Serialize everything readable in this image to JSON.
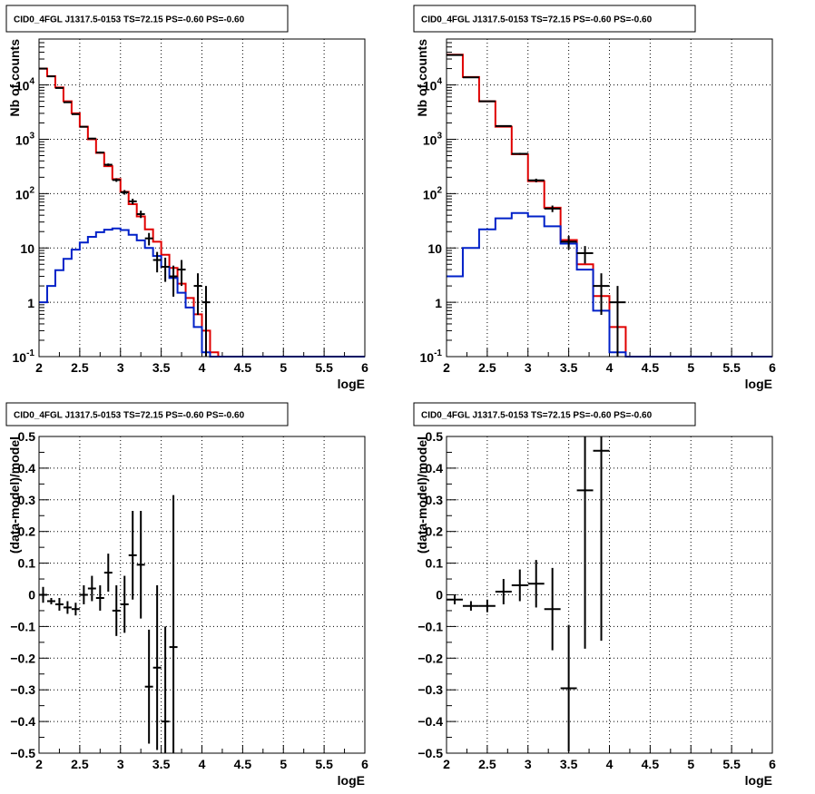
{
  "colors": {
    "data": "#000000",
    "total_model": "#e00000",
    "source_model": "#0020c8",
    "grid": "#000000"
  },
  "chart_data": [
    {
      "type": "line",
      "title": "CID0_4FGL J1317.5-0153 TS=72.15 PS=-0.60 PS=-0.60",
      "xlabel": "logE",
      "ylabel": "Nb of counts",
      "xlim": [
        2,
        6
      ],
      "ylim": [
        0.1,
        70000
      ],
      "yscale": "log",
      "grid": true,
      "x_ticks": [
        "2",
        "2.5",
        "3",
        "3.5",
        "4",
        "4.5",
        "5",
        "5.5",
        "6"
      ],
      "y_ticks": [
        "10^-1",
        "1",
        "10",
        "10^2",
        "10^3",
        "10^4"
      ],
      "bin_edges": [
        2.0,
        2.1,
        2.2,
        2.3,
        2.4,
        2.5,
        2.6,
        2.7,
        2.8,
        2.9,
        3.0,
        3.1,
        3.2,
        3.3,
        3.4,
        3.5,
        3.6,
        3.7,
        3.8,
        3.9,
        4.0,
        4.1,
        4.2,
        4.3,
        4.4,
        4.5,
        4.6,
        4.7,
        4.8,
        4.9,
        5.0,
        5.1,
        5.2,
        5.3,
        5.4,
        5.5,
        5.6,
        5.7,
        5.8,
        5.9,
        6.0
      ],
      "series": [
        {
          "role": "total_model",
          "values": [
            20000,
            14500,
            9000,
            5000,
            3000,
            1700,
            1000,
            560,
            320,
            185,
            108,
            64,
            38,
            22,
            13,
            7.5,
            4.3,
            2.2,
            1.2,
            0.6,
            0.3,
            0.12,
            0.1,
            0.1,
            0.1,
            0.1,
            0.1,
            0.1,
            0.1,
            0.1,
            0.1,
            0.1,
            0.1,
            0.1,
            0.1,
            0.1,
            0.1,
            0.1,
            0.1,
            0.1
          ]
        },
        {
          "role": "source_model",
          "values": [
            1.0,
            2.0,
            3.9,
            6.3,
            9.3,
            12.6,
            16.0,
            19.5,
            21.7,
            22.9,
            21.4,
            17.5,
            13.8,
            10.0,
            7.1,
            4.5,
            2.8,
            1.5,
            0.8,
            0.35,
            0.12,
            0.1,
            0.1,
            0.1,
            0.1,
            0.1,
            0.1,
            0.1,
            0.1,
            0.1,
            0.1,
            0.1,
            0.1,
            0.1,
            0.1,
            0.1,
            0.1,
            0.1,
            0.1,
            0.1
          ]
        }
      ],
      "data_points": [
        {
          "x": 2.05,
          "y": 20000
        },
        {
          "x": 2.15,
          "y": 14400
        },
        {
          "x": 2.25,
          "y": 8800
        },
        {
          "x": 2.35,
          "y": 4800
        },
        {
          "x": 2.45,
          "y": 2900
        },
        {
          "x": 2.55,
          "y": 1700
        },
        {
          "x": 2.65,
          "y": 1030
        },
        {
          "x": 2.75,
          "y": 570
        },
        {
          "x": 2.85,
          "y": 340
        },
        {
          "x": 2.95,
          "y": 178
        },
        {
          "x": 3.05,
          "y": 106
        },
        {
          "x": 3.15,
          "y": 72
        },
        {
          "x": 3.25,
          "y": 42
        },
        {
          "x": 3.35,
          "y": 15
        },
        {
          "x": 3.45,
          "y": 6.0
        },
        {
          "x": 3.55,
          "y": 4.5
        },
        {
          "x": 3.65,
          "y": 3.0
        },
        {
          "x": 3.75,
          "y": 4.0
        },
        {
          "x": 3.95,
          "y": 2.0
        },
        {
          "x": 4.05,
          "y": 1.0
        }
      ]
    },
    {
      "type": "line",
      "title": "CID0_4FGL J1317.5-0153 TS=72.15 PS=-0.60 PS=-0.60",
      "xlabel": "logE",
      "ylabel": "Nb of counts",
      "xlim": [
        2,
        6
      ],
      "ylim": [
        0.1,
        70000
      ],
      "yscale": "log",
      "grid": true,
      "x_ticks": [
        "2",
        "2.5",
        "3",
        "3.5",
        "4",
        "4.5",
        "5",
        "5.5",
        "6"
      ],
      "y_ticks": [
        "10^-1",
        "1",
        "10",
        "10^2",
        "10^3",
        "10^4"
      ],
      "bin_edges": [
        2.0,
        2.2,
        2.4,
        2.6,
        2.8,
        3.0,
        3.2,
        3.4,
        3.6,
        3.8,
        4.0,
        4.2,
        4.4,
        4.6,
        4.8,
        5.0,
        5.2,
        5.4,
        5.6,
        5.8,
        6.0
      ],
      "series": [
        {
          "role": "total_model",
          "values": [
            36000,
            14000,
            5000,
            1700,
            530,
            170,
            55,
            14,
            5.0,
            1.3,
            0.35,
            0.1,
            0.1,
            0.1,
            0.1,
            0.1,
            0.1,
            0.1,
            0.1,
            0.1
          ]
        },
        {
          "role": "source_model",
          "values": [
            3.0,
            10.0,
            22.0,
            35.0,
            44.0,
            38.0,
            25.0,
            12.0,
            4.0,
            0.7,
            0.12,
            0.1,
            0.1,
            0.1,
            0.1,
            0.1,
            0.1,
            0.1,
            0.1,
            0.1
          ]
        }
      ],
      "data_points": [
        {
          "x": 2.1,
          "y": 35500
        },
        {
          "x": 2.3,
          "y": 13800
        },
        {
          "x": 2.5,
          "y": 5000
        },
        {
          "x": 2.7,
          "y": 1750
        },
        {
          "x": 2.9,
          "y": 540
        },
        {
          "x": 3.1,
          "y": 175
        },
        {
          "x": 3.3,
          "y": 53
        },
        {
          "x": 3.5,
          "y": 13
        },
        {
          "x": 3.7,
          "y": 8.0
        },
        {
          "x": 3.9,
          "y": 2.0
        },
        {
          "x": 4.1,
          "y": 1.0
        }
      ]
    },
    {
      "type": "scatter",
      "title": "CID0_4FGL J1317.5-0153 TS=72.15 PS=-0.60 PS=-0.60",
      "xlabel": "logE",
      "ylabel": "(data-model)/model",
      "xlim": [
        2,
        6
      ],
      "ylim": [
        -0.5,
        0.5
      ],
      "grid": true,
      "x_ticks": [
        "2",
        "2.5",
        "3",
        "3.5",
        "4",
        "4.5",
        "5",
        "5.5",
        "6"
      ],
      "y_ticks": [
        "−0.5",
        "−0.4",
        "−0.3",
        "−0.2",
        "−0.1",
        "0",
        "0.1",
        "0.2",
        "0.3",
        "0.4",
        "0.5"
      ],
      "points": [
        {
          "x": 2.05,
          "y": 0.0,
          "err": 0.025
        },
        {
          "x": 2.15,
          "y": -0.02,
          "err": 0.01
        },
        {
          "x": 2.25,
          "y": -0.03,
          "err": 0.02
        },
        {
          "x": 2.35,
          "y": -0.04,
          "err": 0.02
        },
        {
          "x": 2.45,
          "y": -0.045,
          "err": 0.02
        },
        {
          "x": 2.55,
          "y": 0.0,
          "err": 0.03
        },
        {
          "x": 2.65,
          "y": 0.02,
          "err": 0.04
        },
        {
          "x": 2.75,
          "y": -0.01,
          "err": 0.04
        },
        {
          "x": 2.85,
          "y": 0.07,
          "err": 0.06
        },
        {
          "x": 2.95,
          "y": -0.05,
          "err": 0.08
        },
        {
          "x": 3.05,
          "y": -0.03,
          "err": 0.09
        },
        {
          "x": 3.15,
          "y": 0.125,
          "err": 0.14
        },
        {
          "x": 3.25,
          "y": 0.095,
          "err": 0.17
        },
        {
          "x": 3.35,
          "y": -0.29,
          "err": 0.18
        },
        {
          "x": 3.45,
          "y": -0.23,
          "err": 0.26
        },
        {
          "x": 3.55,
          "y": -0.4,
          "err": 0.3
        },
        {
          "x": 3.65,
          "y": -0.165,
          "err": 0.48
        }
      ]
    },
    {
      "type": "scatter",
      "title": "CID0_4FGL J1317.5-0153 TS=72.15 PS=-0.60 PS=-0.60",
      "xlabel": "logE",
      "ylabel": "(data-model)/model",
      "xlim": [
        2,
        6
      ],
      "ylim": [
        -0.5,
        0.5
      ],
      "grid": true,
      "x_ticks": [
        "2",
        "2.5",
        "3",
        "3.5",
        "4",
        "4.5",
        "5",
        "5.5",
        "6"
      ],
      "y_ticks": [
        "−0.5",
        "−0.4",
        "−0.3",
        "−0.2",
        "−0.1",
        "0",
        "0.1",
        "0.2",
        "0.3",
        "0.4",
        "0.5"
      ],
      "points": [
        {
          "x": 2.1,
          "y": -0.015,
          "err": 0.015
        },
        {
          "x": 2.3,
          "y": -0.035,
          "err": 0.015
        },
        {
          "x": 2.5,
          "y": -0.035,
          "err": 0.02
        },
        {
          "x": 2.7,
          "y": 0.01,
          "err": 0.04
        },
        {
          "x": 2.9,
          "y": 0.03,
          "err": 0.05
        },
        {
          "x": 3.1,
          "y": 0.035,
          "err": 0.075
        },
        {
          "x": 3.3,
          "y": -0.045,
          "err": 0.13
        },
        {
          "x": 3.5,
          "y": -0.295,
          "err": 0.2
        },
        {
          "x": 3.7,
          "y": 0.33,
          "err": 0.5
        },
        {
          "x": 3.9,
          "y": 0.455,
          "err": 0.6
        }
      ]
    }
  ]
}
